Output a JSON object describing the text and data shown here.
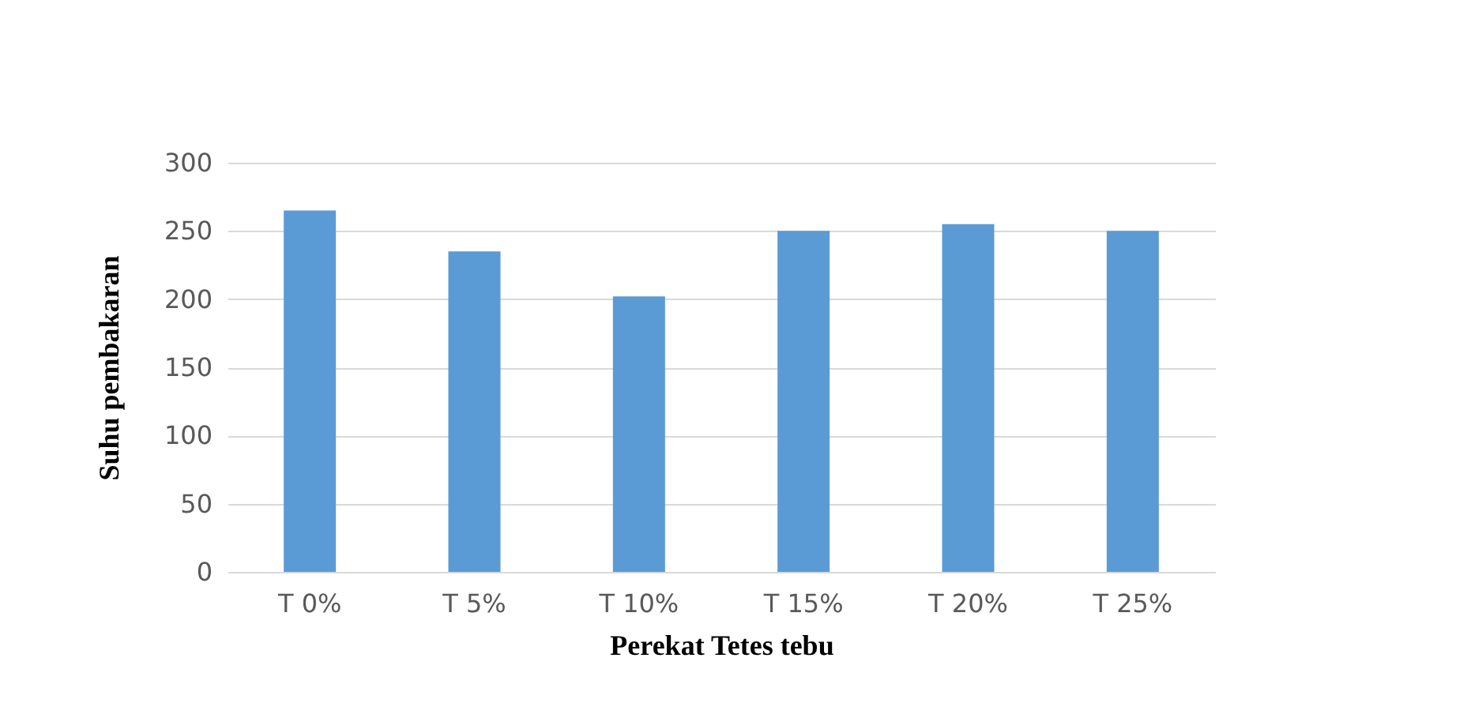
{
  "chart_data": {
    "type": "bar",
    "xlabel": "Perekat Tetes tebu",
    "ylabel": "Suhu pembakaran",
    "categories": [
      "T 0%",
      "T 5%",
      "T 10%",
      "T 15%",
      "T 20%",
      "T 25%"
    ],
    "values": [
      265,
      235,
      202,
      250,
      255,
      250
    ],
    "color": "#5b9bd5",
    "ylim": [
      0,
      300
    ],
    "yticks": [
      0,
      50,
      100,
      150,
      200,
      250,
      300
    ],
    "grid": "y"
  }
}
